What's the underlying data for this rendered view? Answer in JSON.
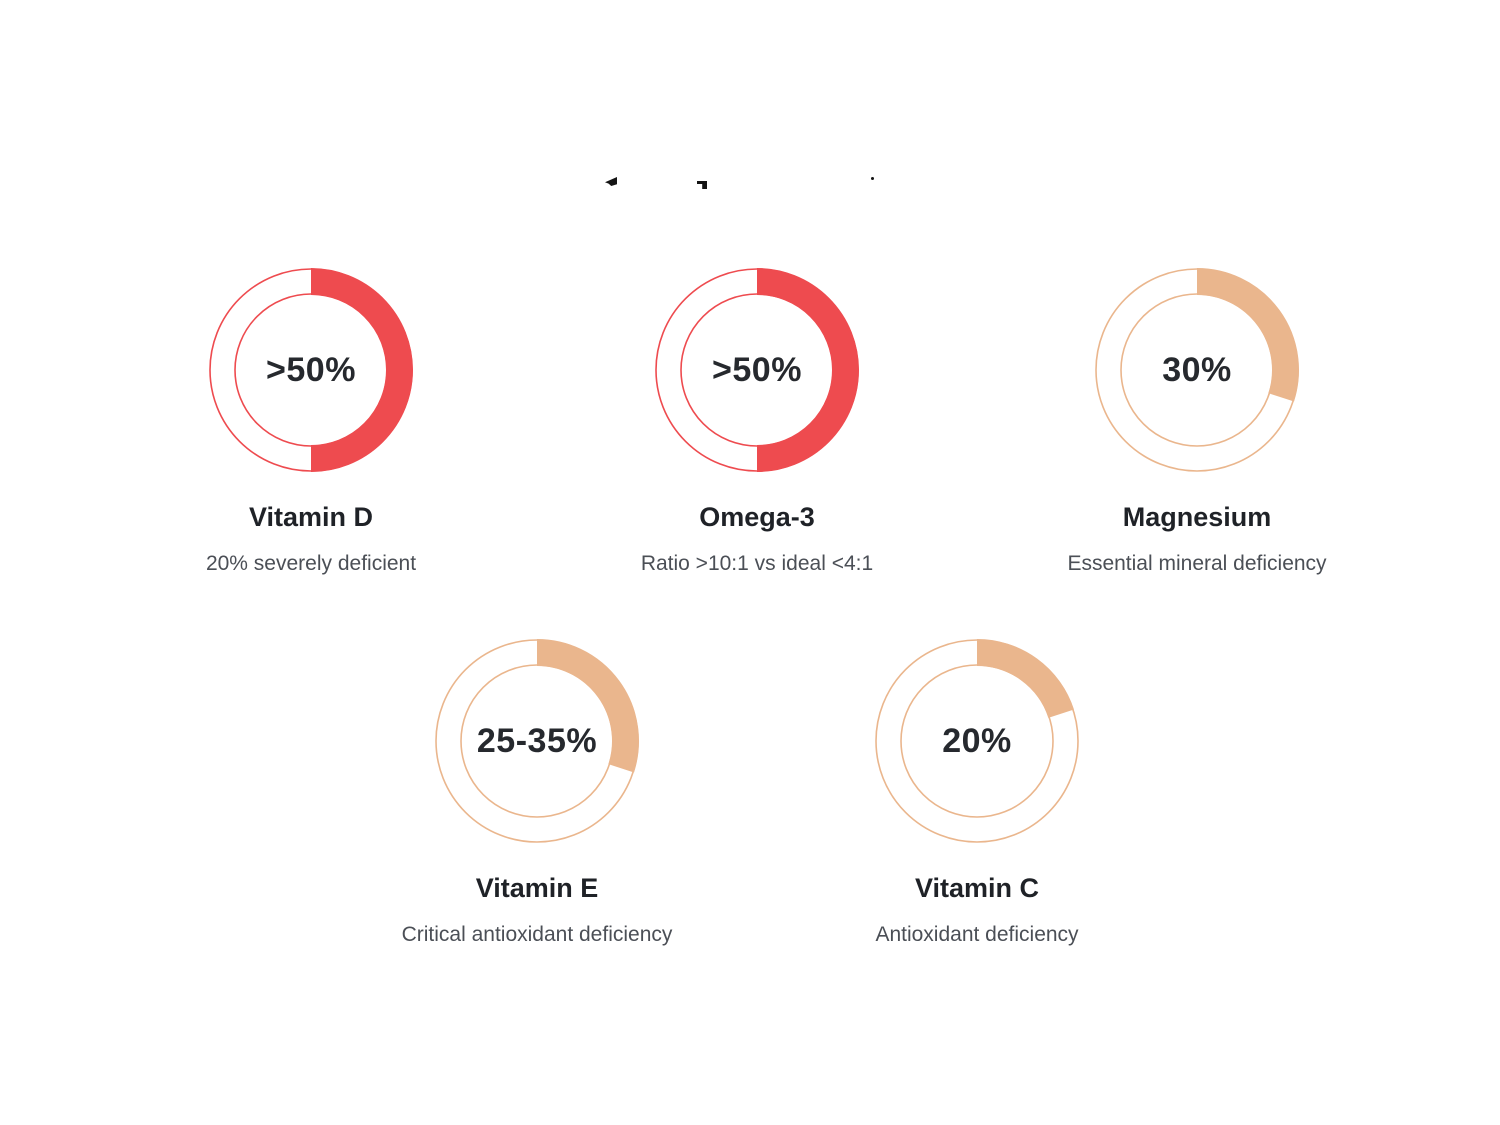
{
  "colors": {
    "critical": "#ee4b4f",
    "moderate": "#eab68d",
    "value_text": "#26292e",
    "title_text": "#1f2227",
    "description_text": "#4b4f56",
    "background": "#ffffff"
  },
  "chart_data": {
    "type": "donut",
    "title": "",
    "legend_position": "none",
    "layout": "grid: 3 donuts top row, 2 donuts bottom row",
    "items": [
      {
        "name": "Vitamin D",
        "value_label": ">50%",
        "percent": 50,
        "description": "20% severely deficient",
        "severity": "critical",
        "color": "#ee4b4f"
      },
      {
        "name": "Omega-3",
        "value_label": ">50%",
        "percent": 50,
        "description": "Ratio >10:1 vs ideal <4:1",
        "severity": "critical",
        "color": "#ee4b4f"
      },
      {
        "name": "Magnesium",
        "value_label": "30%",
        "percent": 30,
        "description": "Essential mineral deficiency",
        "severity": "moderate",
        "color": "#eab68d"
      },
      {
        "name": "Vitamin E",
        "value_label": "25-35%",
        "percent": 30,
        "description": "Critical antioxidant deficiency",
        "severity": "moderate",
        "color": "#eab68d"
      },
      {
        "name": "Vitamin C",
        "value_label": "20%",
        "percent": 20,
        "description": "Antioxidant deficiency",
        "severity": "moderate",
        "color": "#eab68d"
      }
    ]
  }
}
